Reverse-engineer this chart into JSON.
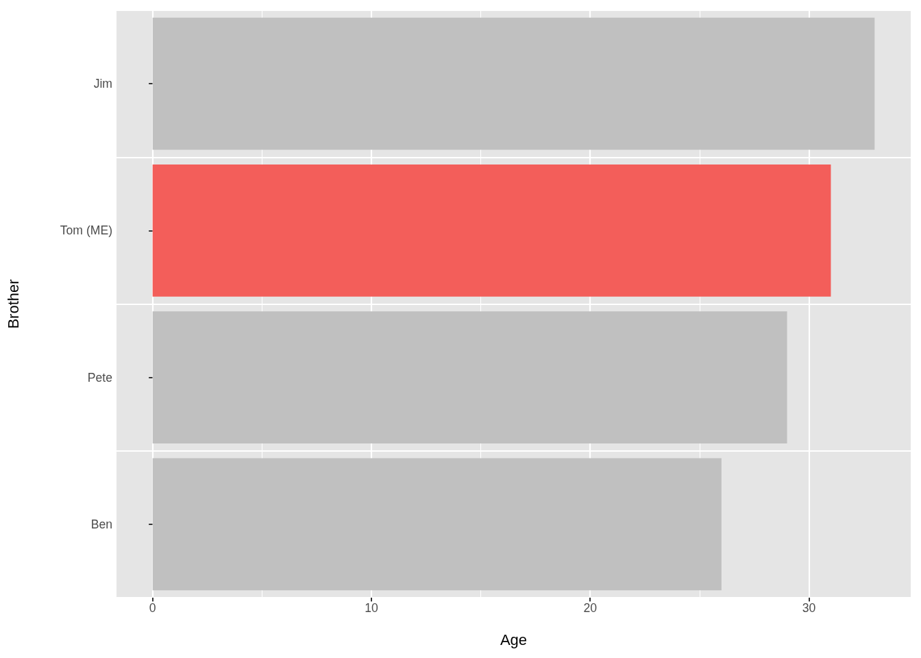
{
  "chart_data": {
    "type": "bar",
    "orientation": "horizontal",
    "categories": [
      "Jim",
      "Tom (ME)",
      "Pete",
      "Ben"
    ],
    "values": [
      33,
      31,
      29,
      26
    ],
    "colors": [
      "#c0c0c0",
      "#f35e5a",
      "#c0c0c0",
      "#c0c0c0"
    ],
    "xlabel": "Age",
    "ylabel": "Brother",
    "xlim": [
      -1.65,
      34.65
    ],
    "xticks": [
      0,
      10,
      20,
      30
    ],
    "grid": true
  }
}
